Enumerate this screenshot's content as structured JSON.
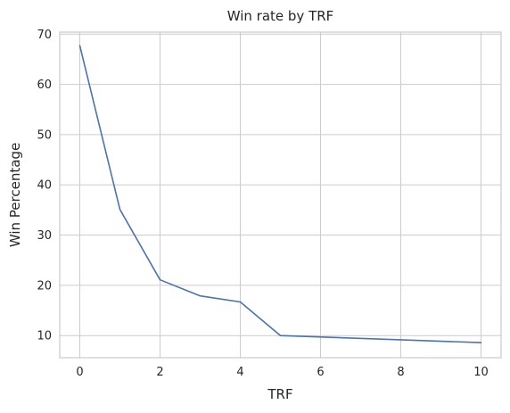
{
  "chart_data": {
    "type": "line",
    "title": "Win rate by TRF",
    "xlabel": "TRF",
    "ylabel": "Win Percentage",
    "xlim": [
      -0.5,
      10.5
    ],
    "ylim": [
      5.6,
      70.4
    ],
    "xticks": [
      0,
      2,
      4,
      6,
      8,
      10
    ],
    "yticks": [
      10,
      20,
      30,
      40,
      50,
      60,
      70
    ],
    "grid": true,
    "series": [
      {
        "color": "#4c72b0",
        "x": [
          0,
          1,
          2,
          3,
          4,
          5,
          10
        ],
        "y": [
          67.7,
          35.1,
          21.1,
          17.9,
          16.7,
          10.0,
          8.6
        ]
      }
    ]
  }
}
